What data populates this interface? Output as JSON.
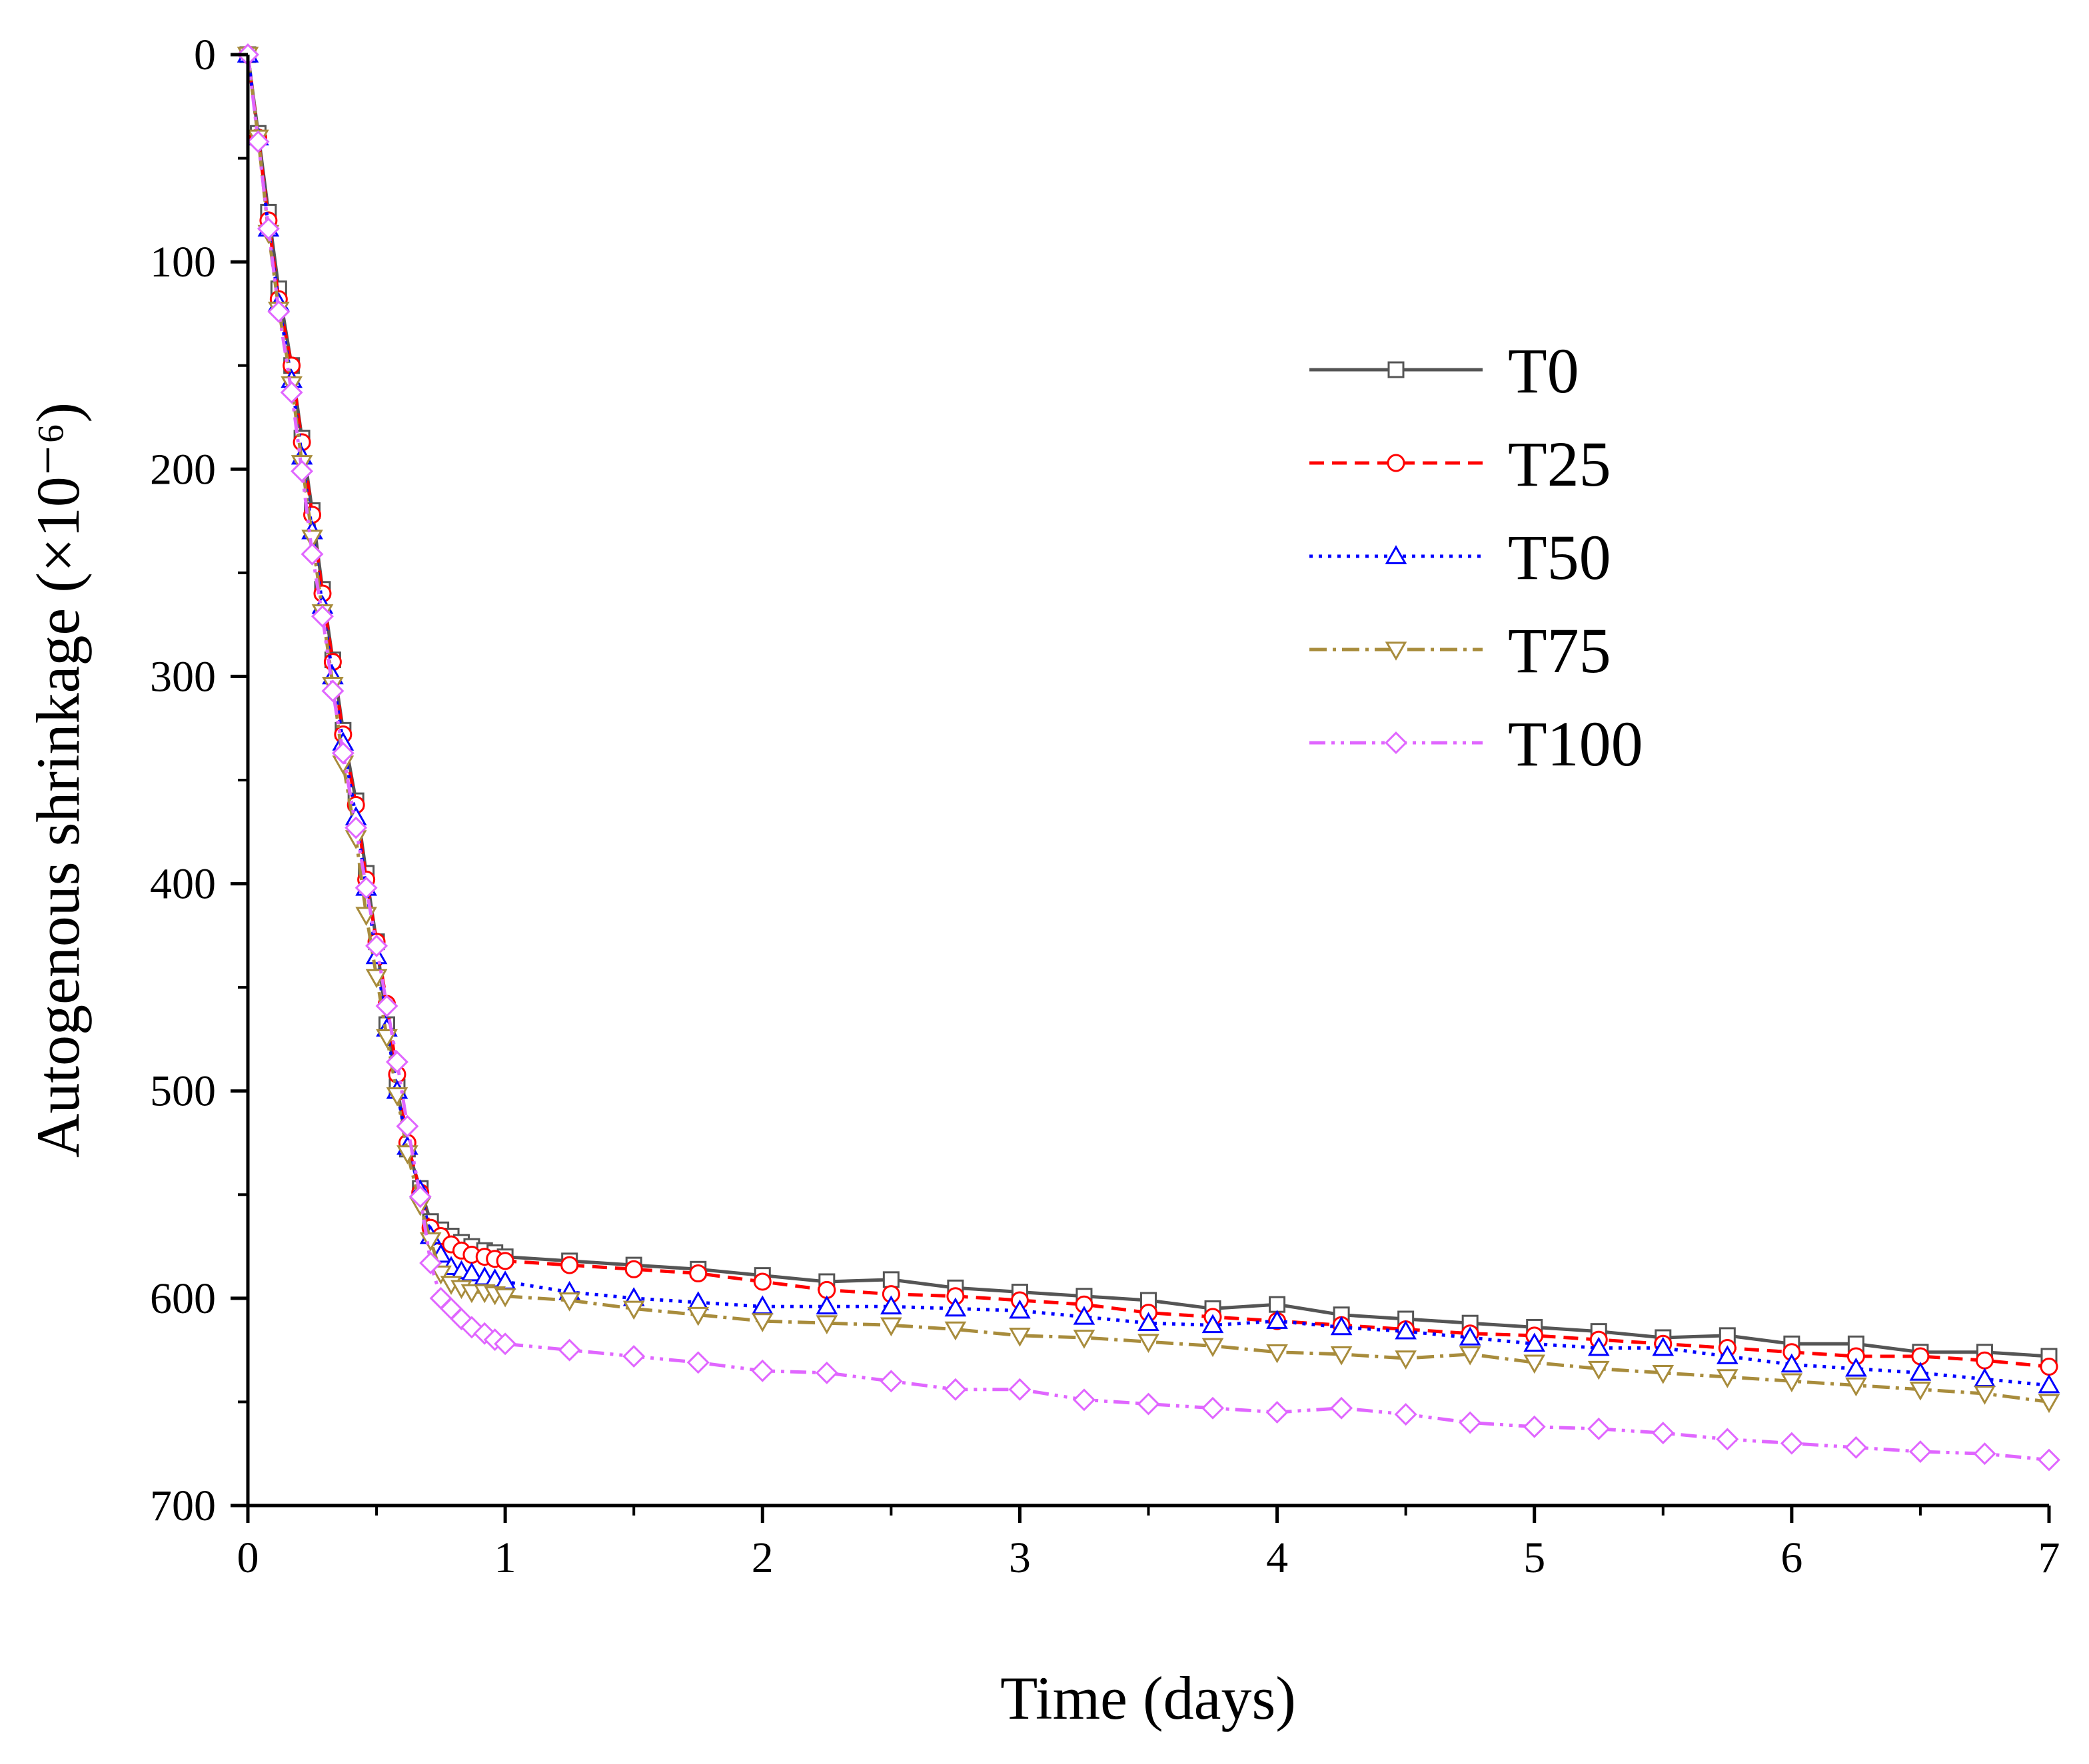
{
  "chart_data": {
    "type": "line",
    "title": "",
    "xlabel": "Time (days)",
    "ylabel": "Autogenous shrinkage (×10⁻⁶)",
    "xlim": [
      0,
      7
    ],
    "ylim": [
      0,
      700
    ],
    "y_inverted": true,
    "x_ticks": [
      0,
      1,
      2,
      3,
      4,
      5,
      6,
      7
    ],
    "y_ticks": [
      0,
      100,
      200,
      300,
      400,
      500,
      600,
      700
    ],
    "legend_position": "right",
    "series": [
      {
        "name": "T0",
        "color": "#555555",
        "marker": "square",
        "dash": "",
        "x": [
          0,
          0.04,
          0.08,
          0.12,
          0.17,
          0.21,
          0.25,
          0.29,
          0.33,
          0.37,
          0.42,
          0.46,
          0.5,
          0.54,
          0.58,
          0.62,
          0.67,
          0.71,
          0.75,
          0.79,
          0.83,
          0.87,
          0.92,
          0.96,
          1,
          1.25,
          1.5,
          1.75,
          2,
          2.25,
          2.5,
          2.75,
          3,
          3.25,
          3.5,
          3.75,
          4,
          4.25,
          4.5,
          4.75,
          5,
          5.25,
          5.5,
          5.75,
          6,
          6.25,
          6.5,
          6.75,
          7
        ],
        "y": [
          0,
          38,
          76,
          113,
          150,
          185,
          220,
          258,
          292,
          326,
          360,
          395,
          428,
          468,
          498,
          528,
          547,
          563,
          567,
          570,
          573,
          575,
          577,
          578,
          580,
          582,
          584,
          586,
          589,
          592,
          591,
          595,
          597,
          599,
          601,
          605,
          603,
          608,
          610,
          612,
          614,
          616,
          619,
          618,
          622,
          622,
          626,
          626,
          628
        ]
      },
      {
        "name": "T25",
        "color": "#ff0000",
        "marker": "circle",
        "dash": "22 12",
        "x": [
          0,
          0.04,
          0.08,
          0.12,
          0.17,
          0.21,
          0.25,
          0.29,
          0.33,
          0.37,
          0.42,
          0.46,
          0.5,
          0.54,
          0.58,
          0.62,
          0.67,
          0.71,
          0.75,
          0.79,
          0.83,
          0.87,
          0.92,
          0.96,
          1,
          1.25,
          1.5,
          1.75,
          2,
          2.25,
          2.5,
          2.75,
          3,
          3.25,
          3.5,
          3.75,
          4,
          4.25,
          4.5,
          4.75,
          5,
          5.25,
          5.5,
          5.75,
          6,
          6.25,
          6.5,
          6.75,
          7
        ],
        "y": [
          0,
          40,
          80,
          118,
          150,
          187,
          222,
          260,
          293,
          328,
          362,
          398,
          428,
          458,
          492,
          525,
          549,
          566,
          570,
          574,
          577,
          579,
          580,
          581,
          582,
          584,
          586,
          588,
          592,
          596,
          598,
          599,
          601,
          603,
          607,
          609,
          611,
          613,
          615,
          617,
          618,
          620,
          622,
          624,
          626,
          628,
          628,
          630,
          633
        ]
      },
      {
        "name": "T50",
        "color": "#0000ff",
        "marker": "triangle-up",
        "dash": "5 9",
        "x": [
          0,
          0.04,
          0.08,
          0.12,
          0.17,
          0.21,
          0.25,
          0.29,
          0.33,
          0.37,
          0.42,
          0.46,
          0.5,
          0.54,
          0.58,
          0.62,
          0.67,
          0.71,
          0.75,
          0.79,
          0.83,
          0.87,
          0.92,
          0.96,
          1,
          1.25,
          1.5,
          1.75,
          2,
          2.25,
          2.5,
          2.75,
          3,
          3.25,
          3.5,
          3.75,
          4,
          4.25,
          4.5,
          4.75,
          5,
          5.25,
          5.5,
          5.75,
          6,
          6.25,
          6.5,
          6.75,
          7
        ],
        "y": [
          0,
          40,
          84,
          120,
          157,
          194,
          230,
          266,
          300,
          332,
          368,
          402,
          435,
          470,
          500,
          527,
          548,
          570,
          579,
          585,
          587,
          588,
          590,
          591,
          592,
          597,
          600,
          602,
          604,
          604,
          604,
          605,
          606,
          609,
          612,
          613,
          611,
          614,
          616,
          619,
          622,
          624,
          624,
          628,
          632,
          634,
          636,
          639,
          642
        ]
      },
      {
        "name": "T75",
        "color": "#a88c3c",
        "marker": "triangle-down",
        "dash": "26 9 5 9",
        "x": [
          0,
          0.04,
          0.08,
          0.12,
          0.17,
          0.21,
          0.25,
          0.29,
          0.33,
          0.37,
          0.42,
          0.46,
          0.5,
          0.54,
          0.58,
          0.62,
          0.67,
          0.71,
          0.75,
          0.79,
          0.83,
          0.87,
          0.92,
          0.96,
          1,
          1.25,
          1.5,
          1.75,
          2,
          2.25,
          2.5,
          2.75,
          3,
          3.25,
          3.5,
          3.75,
          4,
          4.25,
          4.5,
          4.75,
          5,
          5.25,
          5.5,
          5.75,
          6,
          6.25,
          6.5,
          6.75,
          7
        ],
        "y": [
          0,
          40,
          86,
          123,
          159,
          197,
          233,
          269,
          304,
          342,
          378,
          415,
          445,
          474,
          502,
          530,
          555,
          572,
          588,
          593,
          595,
          597,
          597,
          598,
          599,
          601,
          605,
          608,
          611,
          612,
          613,
          615,
          618,
          619,
          621,
          623,
          626,
          627,
          629,
          627,
          631,
          634,
          636,
          638,
          640,
          642,
          644,
          646,
          650
        ]
      },
      {
        "name": "T100",
        "color": "#e066ff",
        "marker": "diamond",
        "dash": "24 9 5 9 5 9",
        "x": [
          0,
          0.04,
          0.08,
          0.12,
          0.17,
          0.21,
          0.25,
          0.29,
          0.33,
          0.37,
          0.42,
          0.46,
          0.5,
          0.54,
          0.58,
          0.62,
          0.67,
          0.71,
          0.75,
          0.79,
          0.83,
          0.87,
          0.92,
          0.96,
          1,
          1.25,
          1.5,
          1.75,
          2,
          2.25,
          2.5,
          2.75,
          3,
          3.25,
          3.5,
          3.75,
          4,
          4.25,
          4.5,
          4.75,
          5,
          5.25,
          5.5,
          5.75,
          6,
          6.25,
          6.5,
          6.75,
          7
        ],
        "y": [
          0,
          42,
          84,
          124,
          163,
          201,
          241,
          271,
          307,
          337,
          373,
          402,
          430,
          459,
          486,
          517,
          551,
          583,
          600,
          605,
          610,
          614,
          617,
          620,
          622,
          625,
          628,
          631,
          635,
          636,
          640,
          644,
          644,
          649,
          651,
          653,
          655,
          653,
          656,
          660,
          662,
          663,
          665,
          668,
          670,
          672,
          674,
          675,
          678
        ]
      }
    ]
  }
}
